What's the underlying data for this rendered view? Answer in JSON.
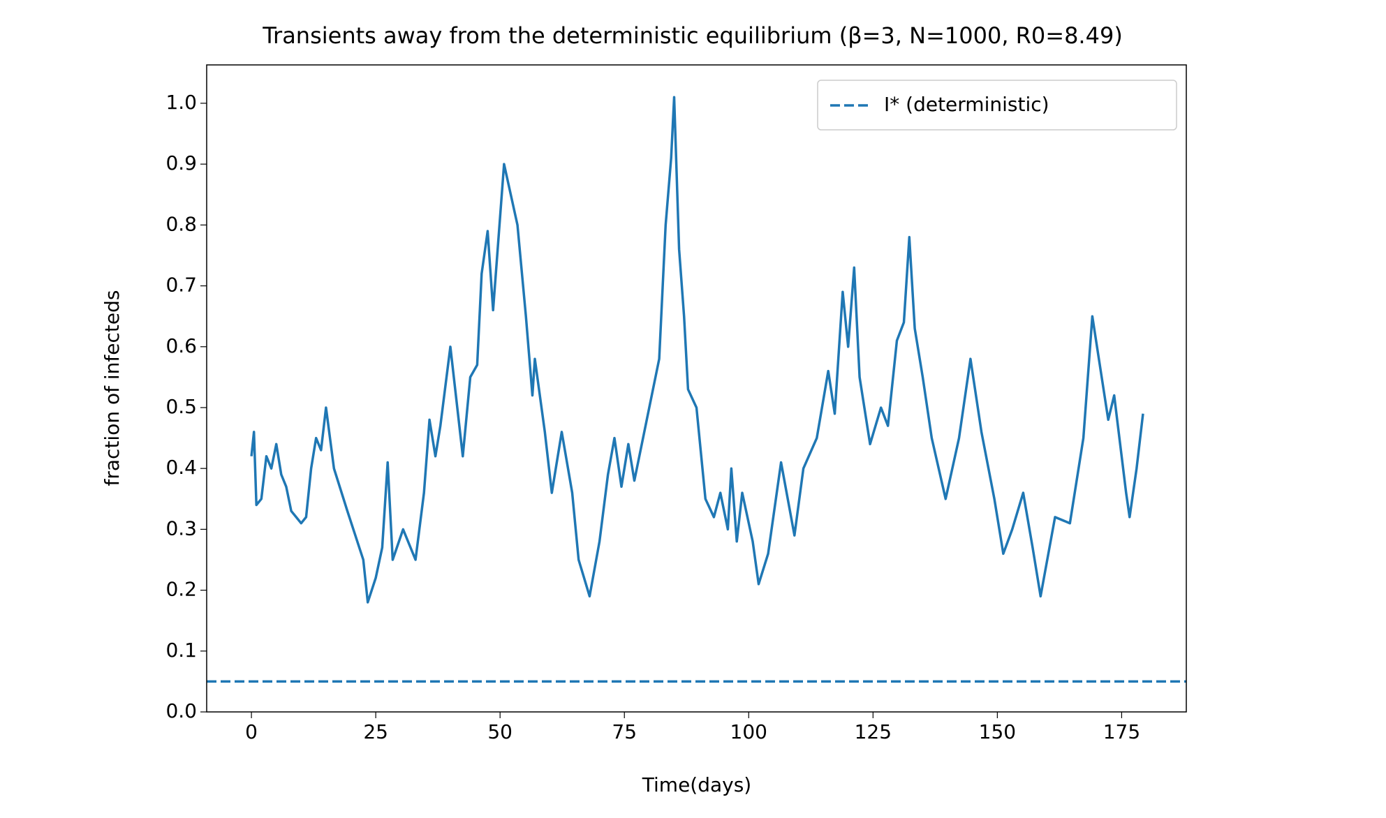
{
  "chart_data": {
    "type": "line",
    "title": "Transients away from the deterministic equilibrium (β=3, N=1000, R0=8.49)",
    "xlabel": "Time(days)",
    "ylabel": "fraction of infecteds",
    "x": [
      0,
      0.5,
      1,
      2,
      3,
      4,
      5,
      6,
      7,
      8,
      9,
      10,
      11,
      12,
      13,
      14,
      15,
      16.6,
      19.3,
      22.5,
      23.4,
      25,
      26.3,
      27.4,
      28.4,
      30.5,
      33,
      34.7,
      35.8,
      37,
      38,
      40,
      41.4,
      42.5,
      44,
      45.4,
      46.3,
      47.5,
      48.6,
      50.8,
      53.5,
      55.2,
      56.5,
      57,
      59,
      60.4,
      62.4,
      64.5,
      65.8,
      68,
      70,
      71.7,
      73,
      74.4,
      75.8,
      77,
      79.5,
      82,
      83.3,
      84.4,
      85,
      86,
      87,
      87.8,
      89.5,
      91.3,
      93,
      94.3,
      95.8,
      96.5,
      97.6,
      98.7,
      100.8,
      102,
      103.9,
      106.5,
      109.2,
      111,
      113.7,
      116,
      117.3,
      118.9,
      120,
      121.2,
      122.3,
      124.4,
      126.6,
      128,
      129.8,
      131.2,
      132.3,
      133.4,
      135,
      136.8,
      139.6,
      142.3,
      144.6,
      146.8,
      149.4,
      151.2,
      153,
      155.2,
      157.1,
      158.7,
      161.6,
      164.6,
      167.3,
      169.1,
      172.3,
      173.5,
      175.9,
      176.6,
      178,
      179.3
    ],
    "series": [
      {
        "name": "fraction of infecteds",
        "color": "#1f77b4",
        "values": [
          0.42,
          0.46,
          0.34,
          0.35,
          0.42,
          0.4,
          0.44,
          0.39,
          0.37,
          0.33,
          0.32,
          0.31,
          0.32,
          0.4,
          0.45,
          0.43,
          0.5,
          0.4,
          0.33,
          0.25,
          0.18,
          0.22,
          0.27,
          0.41,
          0.25,
          0.3,
          0.25,
          0.36,
          0.48,
          0.42,
          0.47,
          0.6,
          0.5,
          0.42,
          0.55,
          0.57,
          0.72,
          0.79,
          0.66,
          0.9,
          0.8,
          0.65,
          0.52,
          0.58,
          0.46,
          0.36,
          0.46,
          0.36,
          0.25,
          0.19,
          0.28,
          0.39,
          0.45,
          0.37,
          0.44,
          0.38,
          0.48,
          0.58,
          0.8,
          0.91,
          1.01,
          0.76,
          0.65,
          0.53,
          0.5,
          0.35,
          0.32,
          0.36,
          0.3,
          0.4,
          0.28,
          0.36,
          0.28,
          0.21,
          0.26,
          0.41,
          0.29,
          0.4,
          0.45,
          0.56,
          0.49,
          0.69,
          0.6,
          0.73,
          0.55,
          0.44,
          0.5,
          0.47,
          0.61,
          0.64,
          0.78,
          0.63,
          0.55,
          0.45,
          0.35,
          0.45,
          0.58,
          0.46,
          0.35,
          0.26,
          0.3,
          0.36,
          0.27,
          0.19,
          0.32,
          0.31,
          0.45,
          0.65,
          0.48,
          0.52,
          0.36,
          0.32,
          0.4,
          0.49
        ]
      }
    ],
    "hline": {
      "name": "I* (deterministic)",
      "value": 0.05,
      "color": "#1f77b4",
      "style": "dashed"
    },
    "legend": "upper right",
    "xlim": [
      -9,
      188
    ],
    "ylim": [
      0,
      1.063
    ],
    "xticks": [
      0,
      25,
      50,
      75,
      100,
      125,
      150,
      175
    ],
    "yticks": [
      {
        "value": 0,
        "label": "0.0"
      },
      0.1,
      0.2,
      0.3,
      0.4,
      0.5,
      0.6,
      0.7,
      0.8,
      0.9,
      {
        "value": 1,
        "label": "1.0"
      }
    ]
  }
}
